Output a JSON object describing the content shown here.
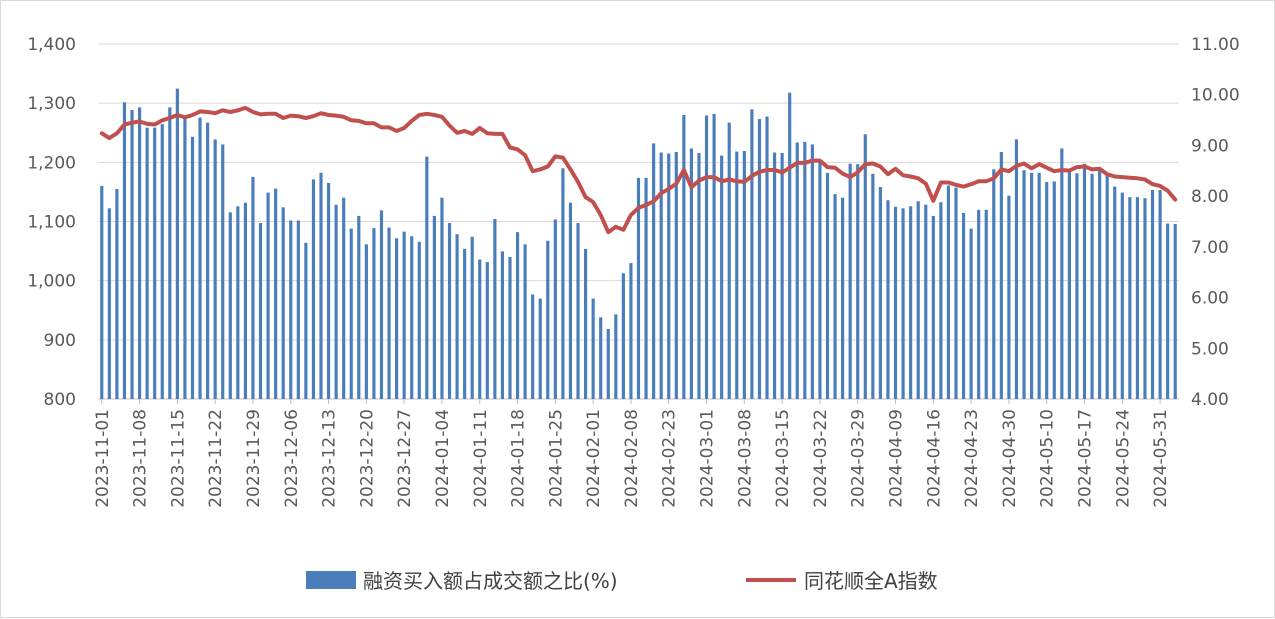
{
  "chart_data": {
    "type": "bar+line",
    "title": "",
    "grid": true,
    "legend_position": "bottom",
    "left_axis": {
      "range": [
        800,
        1400
      ],
      "ticks": [
        "800",
        "900",
        "1,000",
        "1,100",
        "1,200",
        "1,300",
        "1,400"
      ]
    },
    "right_axis": {
      "range": [
        4.0,
        11.0
      ],
      "ticks": [
        "4.00",
        "5.00",
        "6.00",
        "7.00",
        "8.00",
        "9.00",
        "10.00",
        "11.00"
      ]
    },
    "x_tick_labels": [
      "2023-11-01",
      "2023-11-08",
      "2023-11-15",
      "2023-11-22",
      "2023-11-29",
      "2023-12-06",
      "2023-12-13",
      "2023-12-20",
      "2023-12-27",
      "2024-01-04",
      "2024-01-11",
      "2024-01-18",
      "2024-01-25",
      "2024-02-01",
      "2024-02-08",
      "2024-02-23",
      "2024-03-01",
      "2024-03-08",
      "2024-03-15",
      "2024-03-22",
      "2024-03-29",
      "2024-04-09",
      "2024-04-16",
      "2024-04-23",
      "2024-04-30",
      "2024-05-10",
      "2024-05-17",
      "2024-05-24",
      "2024-05-31"
    ],
    "x_tick_positions": [
      0,
      5,
      10,
      15,
      20,
      25,
      30,
      35,
      40,
      45,
      50,
      55,
      60,
      65,
      70,
      75,
      80,
      85,
      90,
      95,
      100,
      105,
      110,
      115,
      120,
      125,
      130,
      135,
      140
    ],
    "series": [
      {
        "name": "融资买入额占成交额之比(%)",
        "type": "bar",
        "axis": "right",
        "color": "#4a7ebb",
        "values": [
          8.2,
          7.76,
          8.14,
          9.85,
          9.7,
          9.75,
          9.35,
          9.35,
          9.42,
          9.75,
          10.12,
          9.57,
          9.17,
          9.55,
          9.45,
          9.12,
          9.02,
          7.68,
          7.8,
          7.87,
          8.38,
          7.47,
          8.07,
          8.15,
          7.78,
          7.52,
          7.52,
          7.08,
          8.33,
          8.46,
          8.26,
          7.83,
          7.97,
          7.36,
          7.61,
          7.05,
          7.37,
          7.72,
          7.38,
          7.17,
          7.3,
          7.21,
          7.1,
          8.78,
          7.61,
          7.97,
          7.47,
          7.25,
          6.96,
          7.2,
          6.75,
          6.7,
          7.55,
          6.91,
          6.8,
          7.29,
          7.05,
          6.06,
          5.98,
          7.12,
          7.54,
          8.55,
          7.87,
          7.47,
          6.96,
          5.98,
          5.61,
          5.38,
          5.67,
          6.48,
          6.68,
          8.36,
          8.36,
          9.04,
          8.86,
          8.84,
          8.87,
          9.6,
          8.94,
          8.85,
          9.59,
          9.62,
          8.8,
          9.45,
          8.88,
          8.89,
          9.71,
          9.52,
          9.57,
          8.86,
          8.85,
          10.04,
          9.06,
          9.07,
          9.02,
          8.67,
          8.46,
          8.04,
          7.97,
          8.64,
          8.63,
          9.22,
          8.44,
          8.18,
          7.92,
          7.79,
          7.76,
          7.8,
          7.9,
          7.83,
          7.61,
          7.88,
          8.21,
          8.17,
          7.67,
          7.36,
          7.73,
          7.73,
          8.53,
          8.87,
          8.01,
          9.12,
          8.51,
          8.46,
          8.46,
          8.28,
          8.29,
          8.94,
          8.54,
          8.45,
          8.64,
          8.44,
          8.56,
          8.41,
          8.19,
          8.07,
          7.98,
          7.98,
          7.96,
          8.12,
          8.12,
          7.46,
          7.45
        ]
      },
      {
        "name": "同花顺全A指数",
        "type": "line",
        "axis": "left",
        "color": "#c0504d",
        "values": [
          1249,
          1241,
          1249,
          1264,
          1267,
          1269,
          1265,
          1264,
          1271,
          1275,
          1280,
          1276,
          1280,
          1286,
          1285,
          1283,
          1288,
          1285,
          1288,
          1292,
          1285,
          1281,
          1282,
          1282,
          1275,
          1279,
          1278,
          1275,
          1278,
          1283,
          1280,
          1279,
          1277,
          1271,
          1270,
          1266,
          1266,
          1259,
          1259,
          1253,
          1258,
          1270,
          1280,
          1282,
          1280,
          1277,
          1262,
          1250,
          1253,
          1248,
          1258,
          1249,
          1248,
          1248,
          1225,
          1222,
          1212,
          1185,
          1188,
          1193,
          1210,
          1208,
          1188,
          1167,
          1141,
          1133,
          1111,
          1082,
          1091,
          1086,
          1111,
          1123,
          1128,
          1134,
          1148,
          1155,
          1164,
          1187,
          1158,
          1169,
          1175,
          1175,
          1168,
          1171,
          1168,
          1167,
          1177,
          1184,
          1187,
          1187,
          1183,
          1191,
          1199,
          1199,
          1203,
          1203,
          1192,
          1191,
          1181,
          1175,
          1183,
          1197,
          1198,
          1193,
          1180,
          1189,
          1178,
          1176,
          1173,
          1164,
          1135,
          1166,
          1166,
          1162,
          1159,
          1163,
          1168,
          1168,
          1173,
          1188,
          1185,
          1194,
          1198,
          1190,
          1197,
          1191,
          1185,
          1187,
          1186,
          1192,
          1193,
          1188,
          1189,
          1180,
          1176,
          1175,
          1174,
          1173,
          1171,
          1163,
          1160,
          1152,
          1137
        ]
      }
    ]
  }
}
